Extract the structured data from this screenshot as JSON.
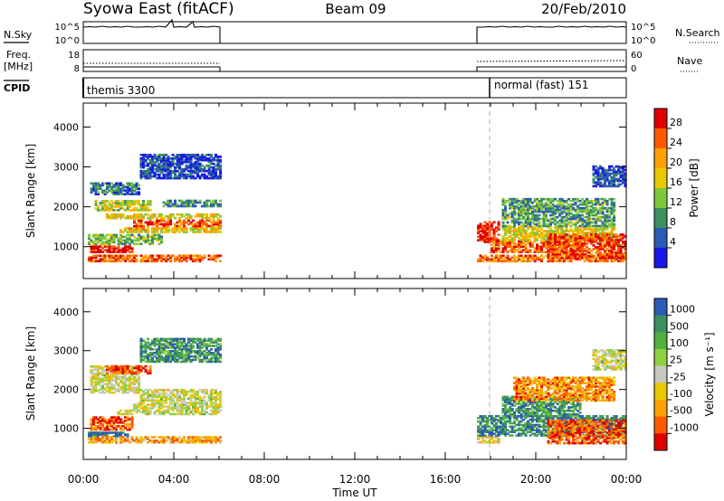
{
  "header": {
    "title": "Syowa East (fitACF)",
    "beam": "Beam 09",
    "date": "20/Feb/2010"
  },
  "chart_data": {
    "type": "heatmap",
    "x_label": "Time UT",
    "x_ticks": [
      "00:00",
      "04:00",
      "08:00",
      "12:00",
      "16:00",
      "20:00",
      "00:00"
    ],
    "x_range_hours": [
      0,
      24
    ],
    "data_gaps": [
      {
        "from": "06:05",
        "to": "17:25"
      }
    ],
    "nsky_panel": {
      "left_label": "N.Sky",
      "right_label": "N.Search",
      "left_ticks": [
        "10^5",
        "10^0"
      ],
      "right_ticks": [
        "10^5",
        "10^0"
      ]
    },
    "freq_panel": {
      "left_label_line1": "Freq.",
      "left_label_line2": "[MHz]",
      "right_label": "Nave",
      "left_ticks": [
        18,
        8
      ],
      "right_ticks": [
        60,
        0
      ]
    },
    "cpid_panel": {
      "label": "CPID",
      "segments": [
        {
          "name": "themis 3300",
          "start": "00:00",
          "end": "06:05"
        },
        {
          "name": "normal (fast) 151",
          "start": "17:25",
          "end": "24:00"
        }
      ]
    },
    "power_panel": {
      "ylabel": "Slant Range [km]",
      "y_ticks": [
        1000,
        2000,
        3000,
        4000
      ],
      "y_range": [
        200,
        4600
      ],
      "colorbar_label": "Power [dB]",
      "colorbar_ticks": [
        "28",
        "24",
        "20",
        "16",
        "12",
        "8",
        "4"
      ],
      "colorbar_colors": [
        "#e00000",
        "#ff5a00",
        "#ffa000",
        "#e8c800",
        "#7ec83c",
        "#3c9060",
        "#2c5ab4",
        "#1818e8"
      ],
      "echo_bands": [
        {
          "t0": 0.2,
          "t1": 6.0,
          "r0": 620,
          "r1": 760,
          "level": 0.8
        },
        {
          "t0": 0.3,
          "t1": 2.2,
          "r0": 850,
          "r1": 1000,
          "level": 0.95
        },
        {
          "t0": 0.2,
          "t1": 3.5,
          "r0": 1050,
          "r1": 1300,
          "level": 0.4
        },
        {
          "t0": 1.5,
          "t1": 6.0,
          "r0": 1350,
          "r1": 1450,
          "level": 0.6
        },
        {
          "t0": 2.2,
          "t1": 6.0,
          "r0": 1500,
          "r1": 1650,
          "level": 0.85
        },
        {
          "t0": 1.0,
          "t1": 6.0,
          "r0": 1700,
          "r1": 1800,
          "level": 0.55
        },
        {
          "t0": 0.5,
          "t1": 3.0,
          "r0": 1900,
          "r1": 2150,
          "level": 0.5
        },
        {
          "t0": 3.5,
          "t1": 6.0,
          "r0": 2000,
          "r1": 2150,
          "level": 0.3
        },
        {
          "t0": 0.3,
          "t1": 2.5,
          "r0": 2300,
          "r1": 2600,
          "level": 0.25
        },
        {
          "t0": 2.5,
          "t1": 6.0,
          "r0": 2700,
          "r1": 3300,
          "level": 0.15
        },
        {
          "t0": 17.4,
          "t1": 24.0,
          "r0": 620,
          "r1": 800,
          "level": 0.75
        },
        {
          "t0": 17.4,
          "t1": 18.4,
          "r0": 1100,
          "r1": 1600,
          "level": 0.95
        },
        {
          "t0": 18.0,
          "t1": 22.0,
          "r0": 850,
          "r1": 1150,
          "level": 0.8
        },
        {
          "t0": 18.5,
          "t1": 23.5,
          "r0": 1150,
          "r1": 1500,
          "level": 0.55
        },
        {
          "t0": 20.5,
          "t1": 24.0,
          "r0": 700,
          "r1": 1300,
          "level": 0.85
        },
        {
          "t0": 18.5,
          "t1": 23.5,
          "r0": 1500,
          "r1": 2200,
          "level": 0.35
        },
        {
          "t0": 22.5,
          "t1": 24.0,
          "r0": 2500,
          "r1": 3000,
          "level": 0.15
        }
      ]
    },
    "velocity_panel": {
      "ylabel": "Slant Range [km]",
      "y_ticks": [
        1000,
        2000,
        3000,
        4000
      ],
      "y_range": [
        200,
        4600
      ],
      "colorbar_label": "Velocity [m s⁻¹]",
      "colorbar_ticks": [
        "1000",
        "500",
        "100",
        "25",
        "-25",
        "-100",
        "-500",
        "-1000"
      ],
      "colorbar_colors": [
        "#2c5ab4",
        "#3c9060",
        "#50b040",
        "#8ed040",
        "#c8c8c0",
        "#e8c800",
        "#ffa000",
        "#ff5a00",
        "#e00000"
      ],
      "echo_bands": [
        {
          "t0": 0.2,
          "t1": 2.0,
          "r0": 780,
          "r1": 900,
          "level": 0.05
        },
        {
          "t0": 0.2,
          "t1": 6.0,
          "r0": 620,
          "r1": 760,
          "level": 0.7
        },
        {
          "t0": 0.3,
          "t1": 2.2,
          "r0": 950,
          "r1": 1300,
          "level": 0.85
        },
        {
          "t0": 1.5,
          "t1": 6.0,
          "r0": 1350,
          "r1": 1450,
          "level": 0.5
        },
        {
          "t0": 2.2,
          "t1": 6.0,
          "r0": 1500,
          "r1": 1650,
          "level": 0.5
        },
        {
          "t0": 2.5,
          "t1": 6.0,
          "r0": 1700,
          "r1": 2000,
          "level": 0.5
        },
        {
          "t0": 0.3,
          "t1": 2.5,
          "r0": 1900,
          "r1": 2600,
          "level": 0.5
        },
        {
          "t0": 1.0,
          "t1": 3.0,
          "r0": 2400,
          "r1": 2600,
          "level": 0.9
        },
        {
          "t0": 2.5,
          "t1": 6.0,
          "r0": 2700,
          "r1": 3300,
          "level": 0.2
        },
        {
          "t0": 17.4,
          "t1": 18.4,
          "r0": 620,
          "r1": 760,
          "level": 0.6
        },
        {
          "t0": 17.4,
          "t1": 24.0,
          "r0": 800,
          "r1": 1300,
          "level": 0.15
        },
        {
          "t0": 18.5,
          "t1": 22.0,
          "r0": 1300,
          "r1": 1800,
          "level": 0.2
        },
        {
          "t0": 20.5,
          "t1": 24.0,
          "r0": 600,
          "r1": 1200,
          "level": 0.85
        },
        {
          "t0": 19.0,
          "t1": 23.5,
          "r0": 1700,
          "r1": 2300,
          "level": 0.75
        },
        {
          "t0": 22.5,
          "t1": 24.0,
          "r0": 2500,
          "r1": 3000,
          "level": 0.5
        }
      ]
    }
  }
}
